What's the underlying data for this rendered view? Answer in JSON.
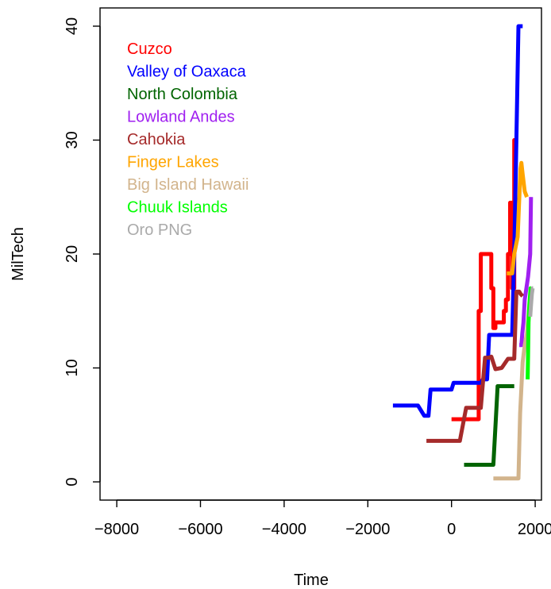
{
  "chart_data": {
    "type": "line",
    "title": "",
    "xlabel": "Time",
    "ylabel": "MilTech",
    "xlim": [
      -8400,
      2150
    ],
    "ylim": [
      -1.6,
      41.6
    ],
    "xticks": [
      -8000,
      -6000,
      -4000,
      -2000,
      0,
      2000
    ],
    "xtick_labels": [
      "−8000",
      "−6000",
      "−4000",
      "−2000",
      "0",
      "2000"
    ],
    "yticks": [
      0,
      10,
      20,
      30,
      40
    ],
    "ytick_labels": [
      "0",
      "10",
      "20",
      "30",
      "40"
    ],
    "grid": false,
    "legend_position": "top-left",
    "series": [
      {
        "name": "Cuzco",
        "color": "#ff0000",
        "x": [
          0,
          650,
          650,
          700,
          700,
          950,
          950,
          1000,
          1000,
          1050,
          1050,
          1250,
          1250,
          1300,
          1300,
          1350,
          1350,
          1400,
          1400,
          1450,
          1450,
          1500,
          1500,
          1550
        ],
        "y": [
          5.5,
          5.5,
          15,
          15,
          20,
          20,
          17,
          17,
          13.5,
          13.5,
          14,
          14,
          15,
          15,
          16,
          16,
          20,
          20,
          24.5,
          24.5,
          17,
          17,
          30,
          30
        ]
      },
      {
        "name": "Valley of Oaxaca",
        "color": "#0000ff",
        "x": [
          -1400,
          -800,
          -650,
          -550,
          -500,
          -400,
          -100,
          0,
          50,
          700,
          750,
          850,
          900,
          1450,
          1500,
          1550,
          1600,
          1700
        ],
        "y": [
          6.7,
          6.7,
          5.8,
          5.8,
          8.1,
          8.1,
          8.1,
          8.1,
          8.7,
          8.7,
          9,
          9,
          12.9,
          12.9,
          20,
          30,
          40,
          40
        ]
      },
      {
        "name": "North Colombia",
        "color": "#006400",
        "x": [
          300,
          1000,
          1100,
          1100,
          1500
        ],
        "y": [
          1.5,
          1.5,
          8.3,
          8.4,
          8.4
        ]
      },
      {
        "name": "Lowland Andes",
        "color": "#a020f0",
        "x": [
          1620,
          1670,
          1690,
          1720,
          1750,
          1790,
          1830,
          1880,
          1900
        ],
        "y": [
          12,
          12,
          13,
          14,
          16,
          17,
          18,
          20,
          25
        ]
      },
      {
        "name": "Cahokia",
        "color": "#a52a2a",
        "x": [
          -600,
          200,
          350,
          400,
          550,
          600,
          700,
          800,
          900,
          950,
          1050,
          1200,
          1350,
          1400,
          1500,
          1550,
          1620,
          1650,
          1700
        ],
        "y": [
          3.6,
          3.6,
          6.5,
          6.5,
          6.5,
          6.5,
          6.5,
          10.9,
          10.9,
          11,
          9.9,
          10,
          10.8,
          10.8,
          10.8,
          16.7,
          16.7,
          16.5,
          16.3
        ]
      },
      {
        "name": "Finger Lakes",
        "color": "#ffa500",
        "x": [
          1320,
          1450,
          1500,
          1580,
          1620,
          1650,
          1670,
          1700,
          1750,
          1800
        ],
        "y": [
          18.3,
          18.3,
          20,
          21.5,
          25,
          27.5,
          28,
          27,
          25.5,
          25
        ]
      },
      {
        "name": "Big Island Hawaii",
        "color": "#d2b48c",
        "x": [
          1000,
          1600,
          1640,
          1700,
          1750,
          1800,
          1850,
          1900
        ],
        "y": [
          0.3,
          0.3,
          6,
          10.5,
          12,
          13,
          15,
          16.5
        ]
      },
      {
        "name": "Chuuk Islands",
        "color": "#00ff00",
        "x": [
          1820,
          1830,
          1840,
          1860,
          1880,
          1890,
          1900
        ],
        "y": [
          9,
          11,
          14,
          15.5,
          16.5,
          17,
          17
        ]
      },
      {
        "name": "Oro PNG",
        "color": "#aaaaaa",
        "x": [
          1880,
          1900,
          1920,
          1940,
          1950
        ],
        "y": [
          14.5,
          15.5,
          16.5,
          17,
          17
        ]
      }
    ]
  }
}
